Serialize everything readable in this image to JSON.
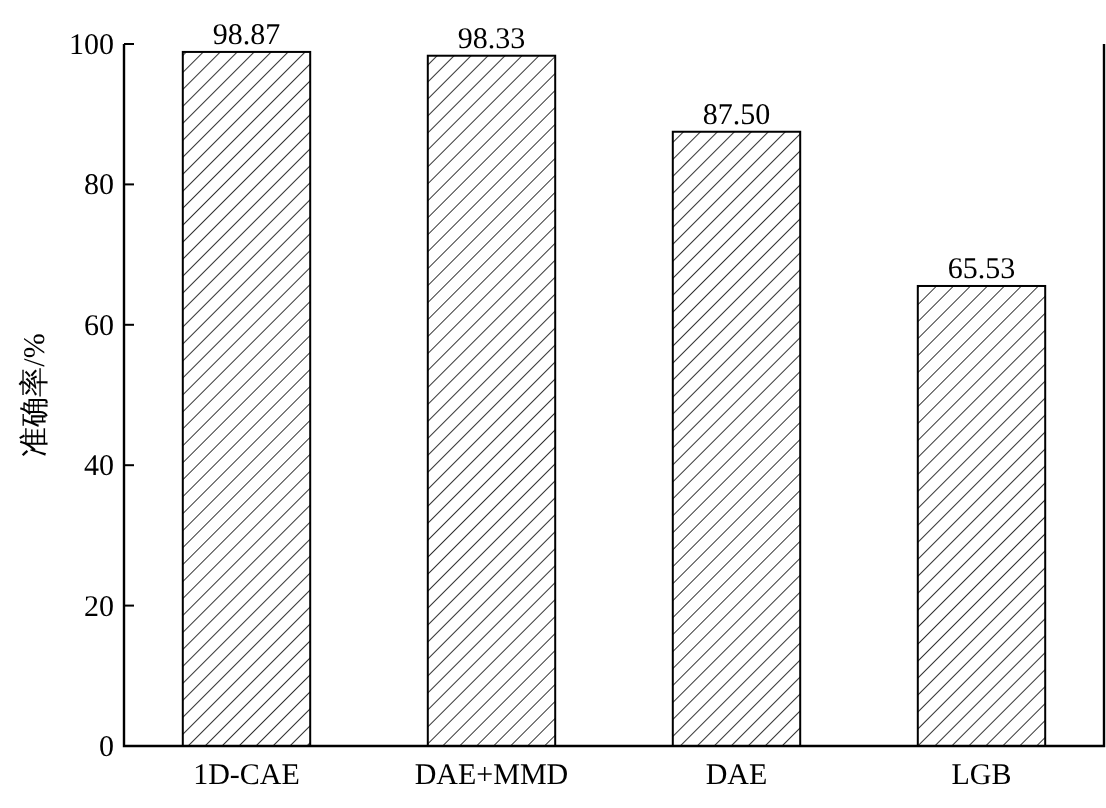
{
  "chart_data": {
    "type": "bar",
    "ylabel": "准确率/%",
    "categories": [
      "1D-CAE",
      "DAE+MMD",
      "DAE",
      "LGB"
    ],
    "values": [
      98.87,
      98.33,
      87.5,
      65.53
    ],
    "value_labels": [
      "98.87",
      "98.33",
      "87.50",
      "65.53"
    ],
    "ylim": [
      0,
      100
    ],
    "yticks": [
      0,
      20,
      40,
      60,
      80,
      100
    ]
  }
}
